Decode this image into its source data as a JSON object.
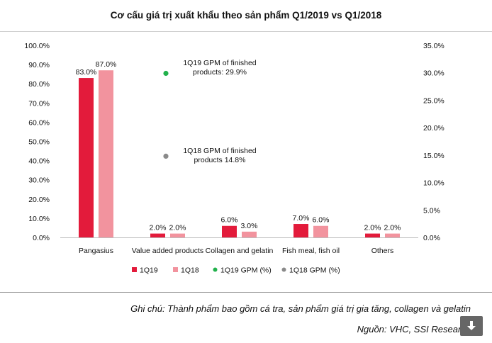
{
  "chart_data": {
    "type": "bar",
    "title": "Cơ cấu giá trị xuất khẩu theo sản phẩm Q1/2019 vs Q1/2018",
    "categories": [
      "Pangasius",
      "Value added products",
      "Collagen and gelatin",
      "Fish meal, fish oil",
      "Others"
    ],
    "series": [
      {
        "name": "1Q19",
        "values": [
          83.0,
          2.0,
          6.0,
          7.0,
          2.0
        ],
        "labels": [
          "83.0%",
          "2.0%",
          "6.0%",
          "7.0%",
          "2.0%"
        ],
        "color": "#e31b3b"
      },
      {
        "name": "1Q18",
        "values": [
          87.0,
          2.0,
          3.0,
          6.0,
          2.0
        ],
        "labels": [
          "87.0%",
          "2.0%",
          "3.0%",
          "6.0%",
          "2.0%"
        ],
        "color": "#f2939e"
      }
    ],
    "gpm_series": [
      {
        "name": "1Q19 GPM (%)",
        "value": 29.9,
        "color": "#22b14c",
        "annotation": [
          "1Q19 GPM of finished",
          "products: 29.9%"
        ]
      },
      {
        "name": "1Q18 GPM (%)",
        "value": 14.8,
        "color": "#8a8a8a",
        "annotation": [
          "1Q18 GPM of finished",
          "products 14.8%"
        ]
      }
    ],
    "y_left": {
      "ylim": [
        0,
        100
      ],
      "ticks": [
        "0.0%",
        "10.0%",
        "20.0%",
        "30.0%",
        "40.0%",
        "50.0%",
        "60.0%",
        "70.0%",
        "80.0%",
        "90.0%",
        "100.0%"
      ]
    },
    "y_right": {
      "ylim": [
        0,
        35
      ],
      "ticks": [
        "0.0%",
        "5.0%",
        "10.0%",
        "15.0%",
        "20.0%",
        "25.0%",
        "30.0%",
        "35.0%"
      ]
    },
    "grid": false,
    "legend_position": "bottom"
  },
  "footer": {
    "note": "Ghi chú: Thành phẩm bao gồm cá tra, sản phẩm giá trị gia tăng, collagen và gelatin",
    "source": "Nguồn: VHC, SSI Research"
  }
}
